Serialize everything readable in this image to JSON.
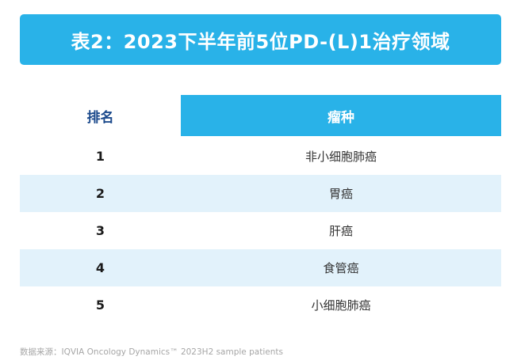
{
  "title": "表2：2023下半年前5位PD-(L)1治疗领域",
  "colors": {
    "accent": "#29b2e8",
    "row_alternate": "#e2f2fb",
    "rank_header_text": "#1c4a8c",
    "footer_text": "#a6a6a6"
  },
  "table": {
    "columns": [
      {
        "label": "排名"
      },
      {
        "label": "瘤种"
      }
    ],
    "rows": [
      {
        "rank": "1",
        "tumor": "非小细胞肺癌"
      },
      {
        "rank": "2",
        "tumor": "胃癌"
      },
      {
        "rank": "3",
        "tumor": "肝癌"
      },
      {
        "rank": "4",
        "tumor": "食管癌"
      },
      {
        "rank": "5",
        "tumor": "小细胞肺癌"
      }
    ]
  },
  "footer": "数据来源：IQVIA Oncology Dynamics™ 2023H2 sample patients",
  "chart_data": {
    "type": "table",
    "title": "表2：2023下半年前5位PD-(L)1治疗领域",
    "columns": [
      "排名",
      "瘤种"
    ],
    "rows": [
      [
        "1",
        "非小细胞肺癌"
      ],
      [
        "2",
        "胃癌"
      ],
      [
        "3",
        "肝癌"
      ],
      [
        "4",
        "食管癌"
      ],
      [
        "5",
        "小细胞肺癌"
      ]
    ],
    "source_note": "数据来源：IQVIA Oncology Dynamics™ 2023H2 sample patients"
  }
}
